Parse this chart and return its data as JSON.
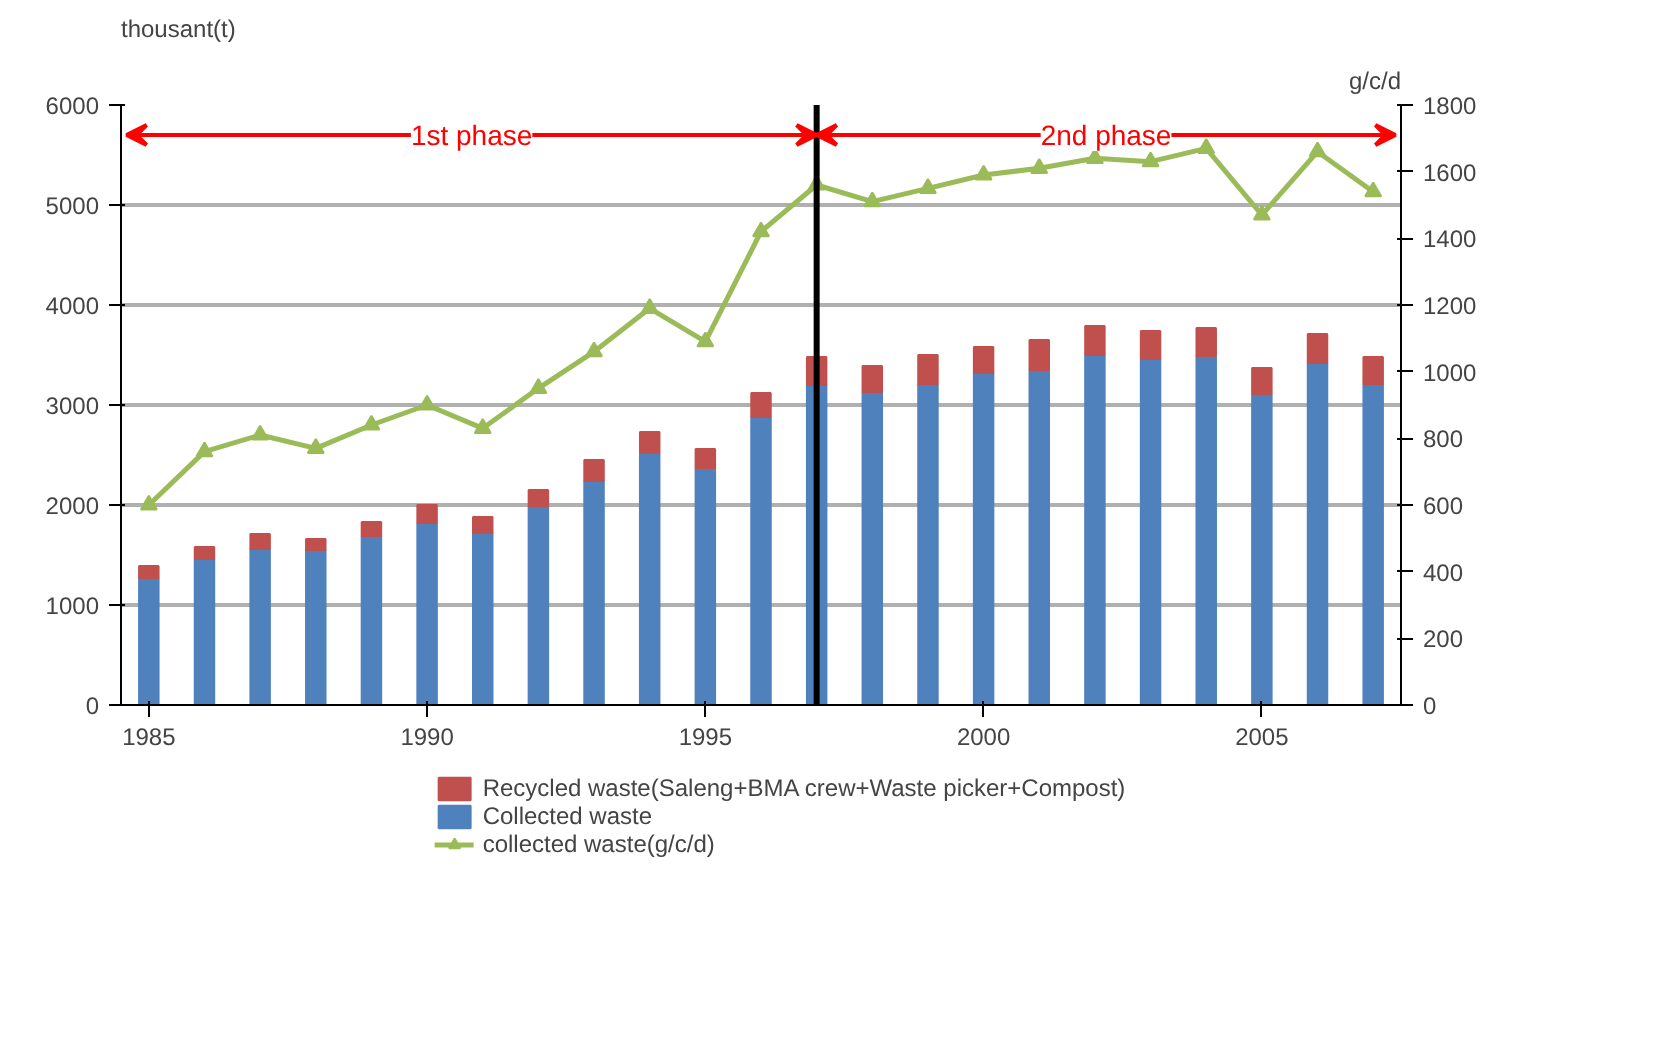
{
  "chart_data": {
    "type": "bar",
    "stacked": true,
    "ylabel": "thousant(t)",
    "y2label": "g/c/d",
    "x": [
      1985,
      1986,
      1987,
      1988,
      1989,
      1990,
      1991,
      1992,
      1993,
      1994,
      1995,
      1996,
      1997,
      1998,
      1999,
      2000,
      2001,
      2002,
      2003,
      2004,
      2005,
      2006,
      2007
    ],
    "series": [
      {
        "name": "Collected waste",
        "color": "#4f81bd",
        "values": [
          1270,
          1460,
          1560,
          1550,
          1690,
          1820,
          1720,
          1990,
          2240,
          2520,
          2370,
          2880,
          3200,
          3130,
          3210,
          3320,
          3350,
          3500,
          3460,
          3490,
          3110,
          3420,
          3210
        ]
      },
      {
        "name": "Recycled waste(Saleng+BMA crew+Waste picker+Compost)",
        "color": "#c0504d",
        "values": [
          120,
          120,
          150,
          110,
          140,
          180,
          160,
          160,
          210,
          210,
          190,
          240,
          280,
          260,
          290,
          260,
          300,
          290,
          280,
          280,
          260,
          290,
          270
        ]
      },
      {
        "name": "collected waste(g/c/d)",
        "type": "line",
        "axis": "y2",
        "marker": "triangle",
        "color": "#9bbb59",
        "values": [
          600,
          760,
          810,
          770,
          840,
          900,
          830,
          950,
          1060,
          1190,
          1090,
          1420,
          1560,
          1510,
          1550,
          1590,
          1610,
          1640,
          1630,
          1670,
          1470,
          1660,
          1540
        ]
      }
    ],
    "xlim": [
      1984.5,
      2007.5
    ],
    "xticks": [
      1985,
      1990,
      1995,
      2000,
      2005
    ],
    "ylim": [
      0,
      6000
    ],
    "yticks": [
      0,
      1000,
      2000,
      3000,
      4000,
      5000,
      6000
    ],
    "y2lim": [
      0,
      1800
    ],
    "y2ticks": [
      0,
      200,
      400,
      600,
      800,
      1000,
      1200,
      1400,
      1600,
      1800
    ],
    "ref_lines": [
      {
        "axis": "x",
        "value": 1997,
        "color": "#000000"
      }
    ],
    "annotations": [
      "1st phase",
      "2nd phase"
    ],
    "grid": "y",
    "legend": "bottom"
  }
}
